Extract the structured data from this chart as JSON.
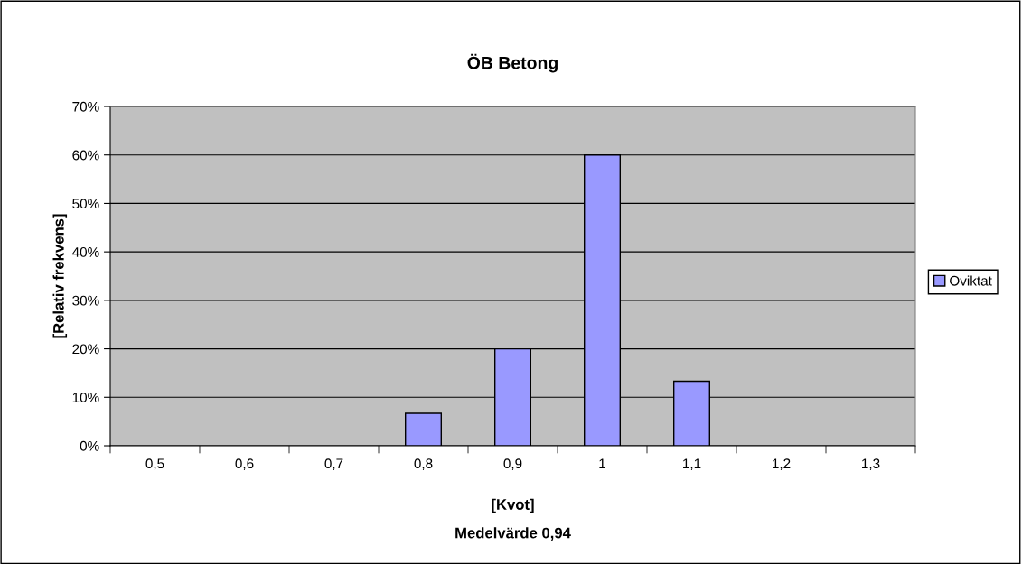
{
  "chart_data": {
    "type": "bar",
    "title": "ÖB Betong",
    "xlabel": "[Kvot]",
    "ylabel": "[Relativ frekvens]",
    "annotations": [
      "Medelvärde 0,94"
    ],
    "categories": [
      "0,5",
      "0,6",
      "0,7",
      "0,8",
      "0,9",
      "1",
      "1,1",
      "1,2",
      "1,3"
    ],
    "series": [
      {
        "name": "Oviktat",
        "color": "#9999ff",
        "values": [
          0,
          0,
          0,
          6.7,
          20,
          60,
          13.3,
          0,
          0
        ]
      }
    ],
    "ylim": [
      0,
      70
    ],
    "yticks": [
      {
        "value": 0,
        "label": "0%"
      },
      {
        "value": 10,
        "label": "10%"
      },
      {
        "value": 20,
        "label": "20%"
      },
      {
        "value": 30,
        "label": "30%"
      },
      {
        "value": 40,
        "label": "40%"
      },
      {
        "value": 50,
        "label": "50%"
      },
      {
        "value": 60,
        "label": "60%"
      },
      {
        "value": 70,
        "label": "70%"
      }
    ],
    "grid": "y",
    "legend": "right"
  }
}
